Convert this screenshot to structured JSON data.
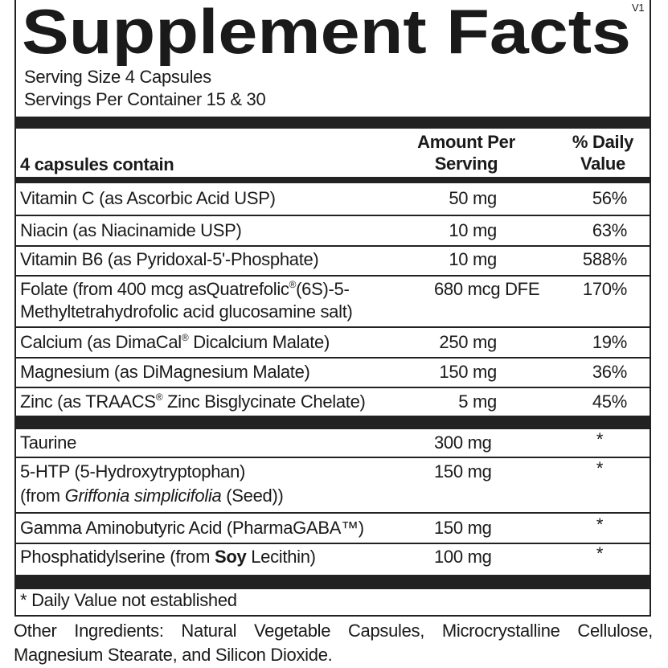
{
  "header": {
    "title": "Supplement Facts",
    "version": "V1",
    "serving_size": "Serving Size 4 Capsules",
    "servings_per_container": "Servings Per Container 15 & 30"
  },
  "table": {
    "columns": {
      "name": "4 capsules contain",
      "amount": [
        "Amount Per",
        "Serving"
      ],
      "daily_value": [
        "% Daily",
        "Value"
      ]
    },
    "rows": [
      {
        "name": [
          "Vitamin C (as Ascorbic Acid USP)"
        ],
        "amount": "50 mg",
        "daily_value": "56%"
      },
      {
        "name": [
          "Niacin (as Niacinamide USP)"
        ],
        "amount": "10 mg",
        "daily_value": "63%"
      },
      {
        "name": [
          "Vitamin B6 (as Pyridoxal-5'-Phosphate)"
        ],
        "amount": "10 mg",
        "daily_value": "588%"
      },
      {
        "name": [
          "Folate (from 400 mcg asQuatrefolic",
          "®",
          "(6S)-5-",
          "Methyltetrahydrofolic acid glucosamine salt)"
        ],
        "amount": "680 mcg DFE",
        "daily_value": "170%"
      },
      {
        "name": [
          "Calcium (as DimaCal",
          "®",
          " Dicalcium Malate)"
        ],
        "amount": "250 mg",
        "daily_value": "19%"
      },
      {
        "name": [
          "Magnesium (as DiMagnesium Malate)"
        ],
        "amount": "150 mg",
        "daily_value": "36%"
      },
      {
        "name": [
          "Zinc (as TRAACS",
          "®",
          " Zinc Bisglycinate Chelate)"
        ],
        "amount": "5 mg",
        "daily_value": "45%"
      },
      {
        "name": [
          "Taurine"
        ],
        "amount": "300 mg",
        "daily_value": "*"
      },
      {
        "name": [
          "5-HTP (5-Hydroxytryptophan)",
          "(from ",
          "Griffonia simplicifolia",
          " (Seed))"
        ],
        "amount": "150 mg",
        "daily_value": "*"
      },
      {
        "name": [
          "Gamma Aminobutyric Acid (PharmaGABA™)"
        ],
        "amount": "150 mg",
        "daily_value": "*"
      },
      {
        "name": [
          "Phosphatidylserine (from ",
          "Soy",
          " Lecithin)"
        ],
        "amount": "100 mg",
        "daily_value": "*"
      }
    ],
    "footnote": "* Daily Value not established"
  },
  "other_ingredients": [
    "Other Ingredients: Natural Vegetable Capsules, Microcrystalline Cellulose,",
    "Magnesium Stearate, and Silicon Dioxide."
  ]
}
